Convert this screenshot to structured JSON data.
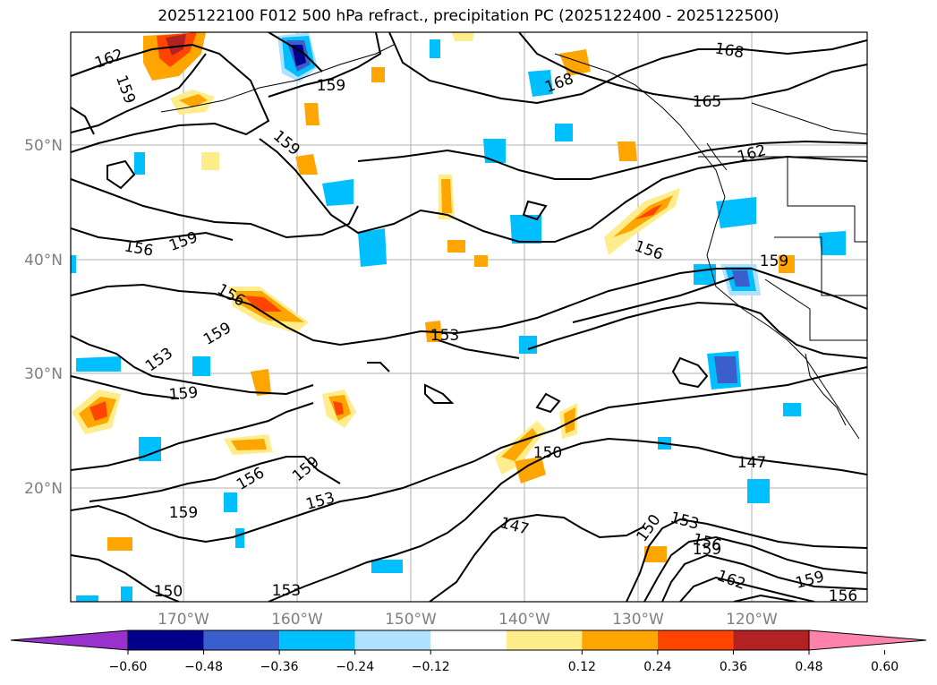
{
  "title": "2025122100 F012 500 hPa refract., precipitation PC (2025122400 - 2025122500)",
  "lat_labels": [
    "50°N",
    "40°N",
    "30°N",
    "20°N"
  ],
  "lon_labels": [
    "170°W",
    "160°W",
    "150°W",
    "140°W",
    "130°W",
    "120°W"
  ],
  "contour_labels": [
    {
      "text": "162"
    },
    {
      "text": "159"
    },
    {
      "text": "159"
    },
    {
      "text": "159"
    },
    {
      "text": "168"
    },
    {
      "text": "168"
    },
    {
      "text": "165"
    },
    {
      "text": "162"
    },
    {
      "text": "156"
    },
    {
      "text": "159"
    },
    {
      "text": "156"
    },
    {
      "text": "159"
    },
    {
      "text": "153"
    },
    {
      "text": "159"
    },
    {
      "text": "156"
    },
    {
      "text": "153"
    },
    {
      "text": "159"
    },
    {
      "text": "156"
    },
    {
      "text": "159"
    },
    {
      "text": "153"
    },
    {
      "text": "159"
    },
    {
      "text": "150"
    },
    {
      "text": "147"
    },
    {
      "text": "147"
    },
    {
      "text": "150"
    },
    {
      "text": "153"
    },
    {
      "text": "156"
    },
    {
      "text": "159"
    },
    {
      "text": "162"
    },
    {
      "text": "159"
    },
    {
      "text": "156"
    },
    {
      "text": "150"
    },
    {
      "text": "153"
    }
  ],
  "colorbar": {
    "colors": [
      "#9932cc",
      "#00008b",
      "#3a5fcd",
      "#00bfff",
      "#b0e2ff",
      "#ffffff",
      "#ffec8b",
      "#ffa500",
      "#ff4500",
      "#b22222",
      "#ff82ab"
    ],
    "ticks": [
      "−0.60",
      "−0.48",
      "−0.36",
      "−0.24",
      "−0.12",
      "0.12",
      "0.24",
      "0.36",
      "0.48",
      "0.60"
    ]
  }
}
